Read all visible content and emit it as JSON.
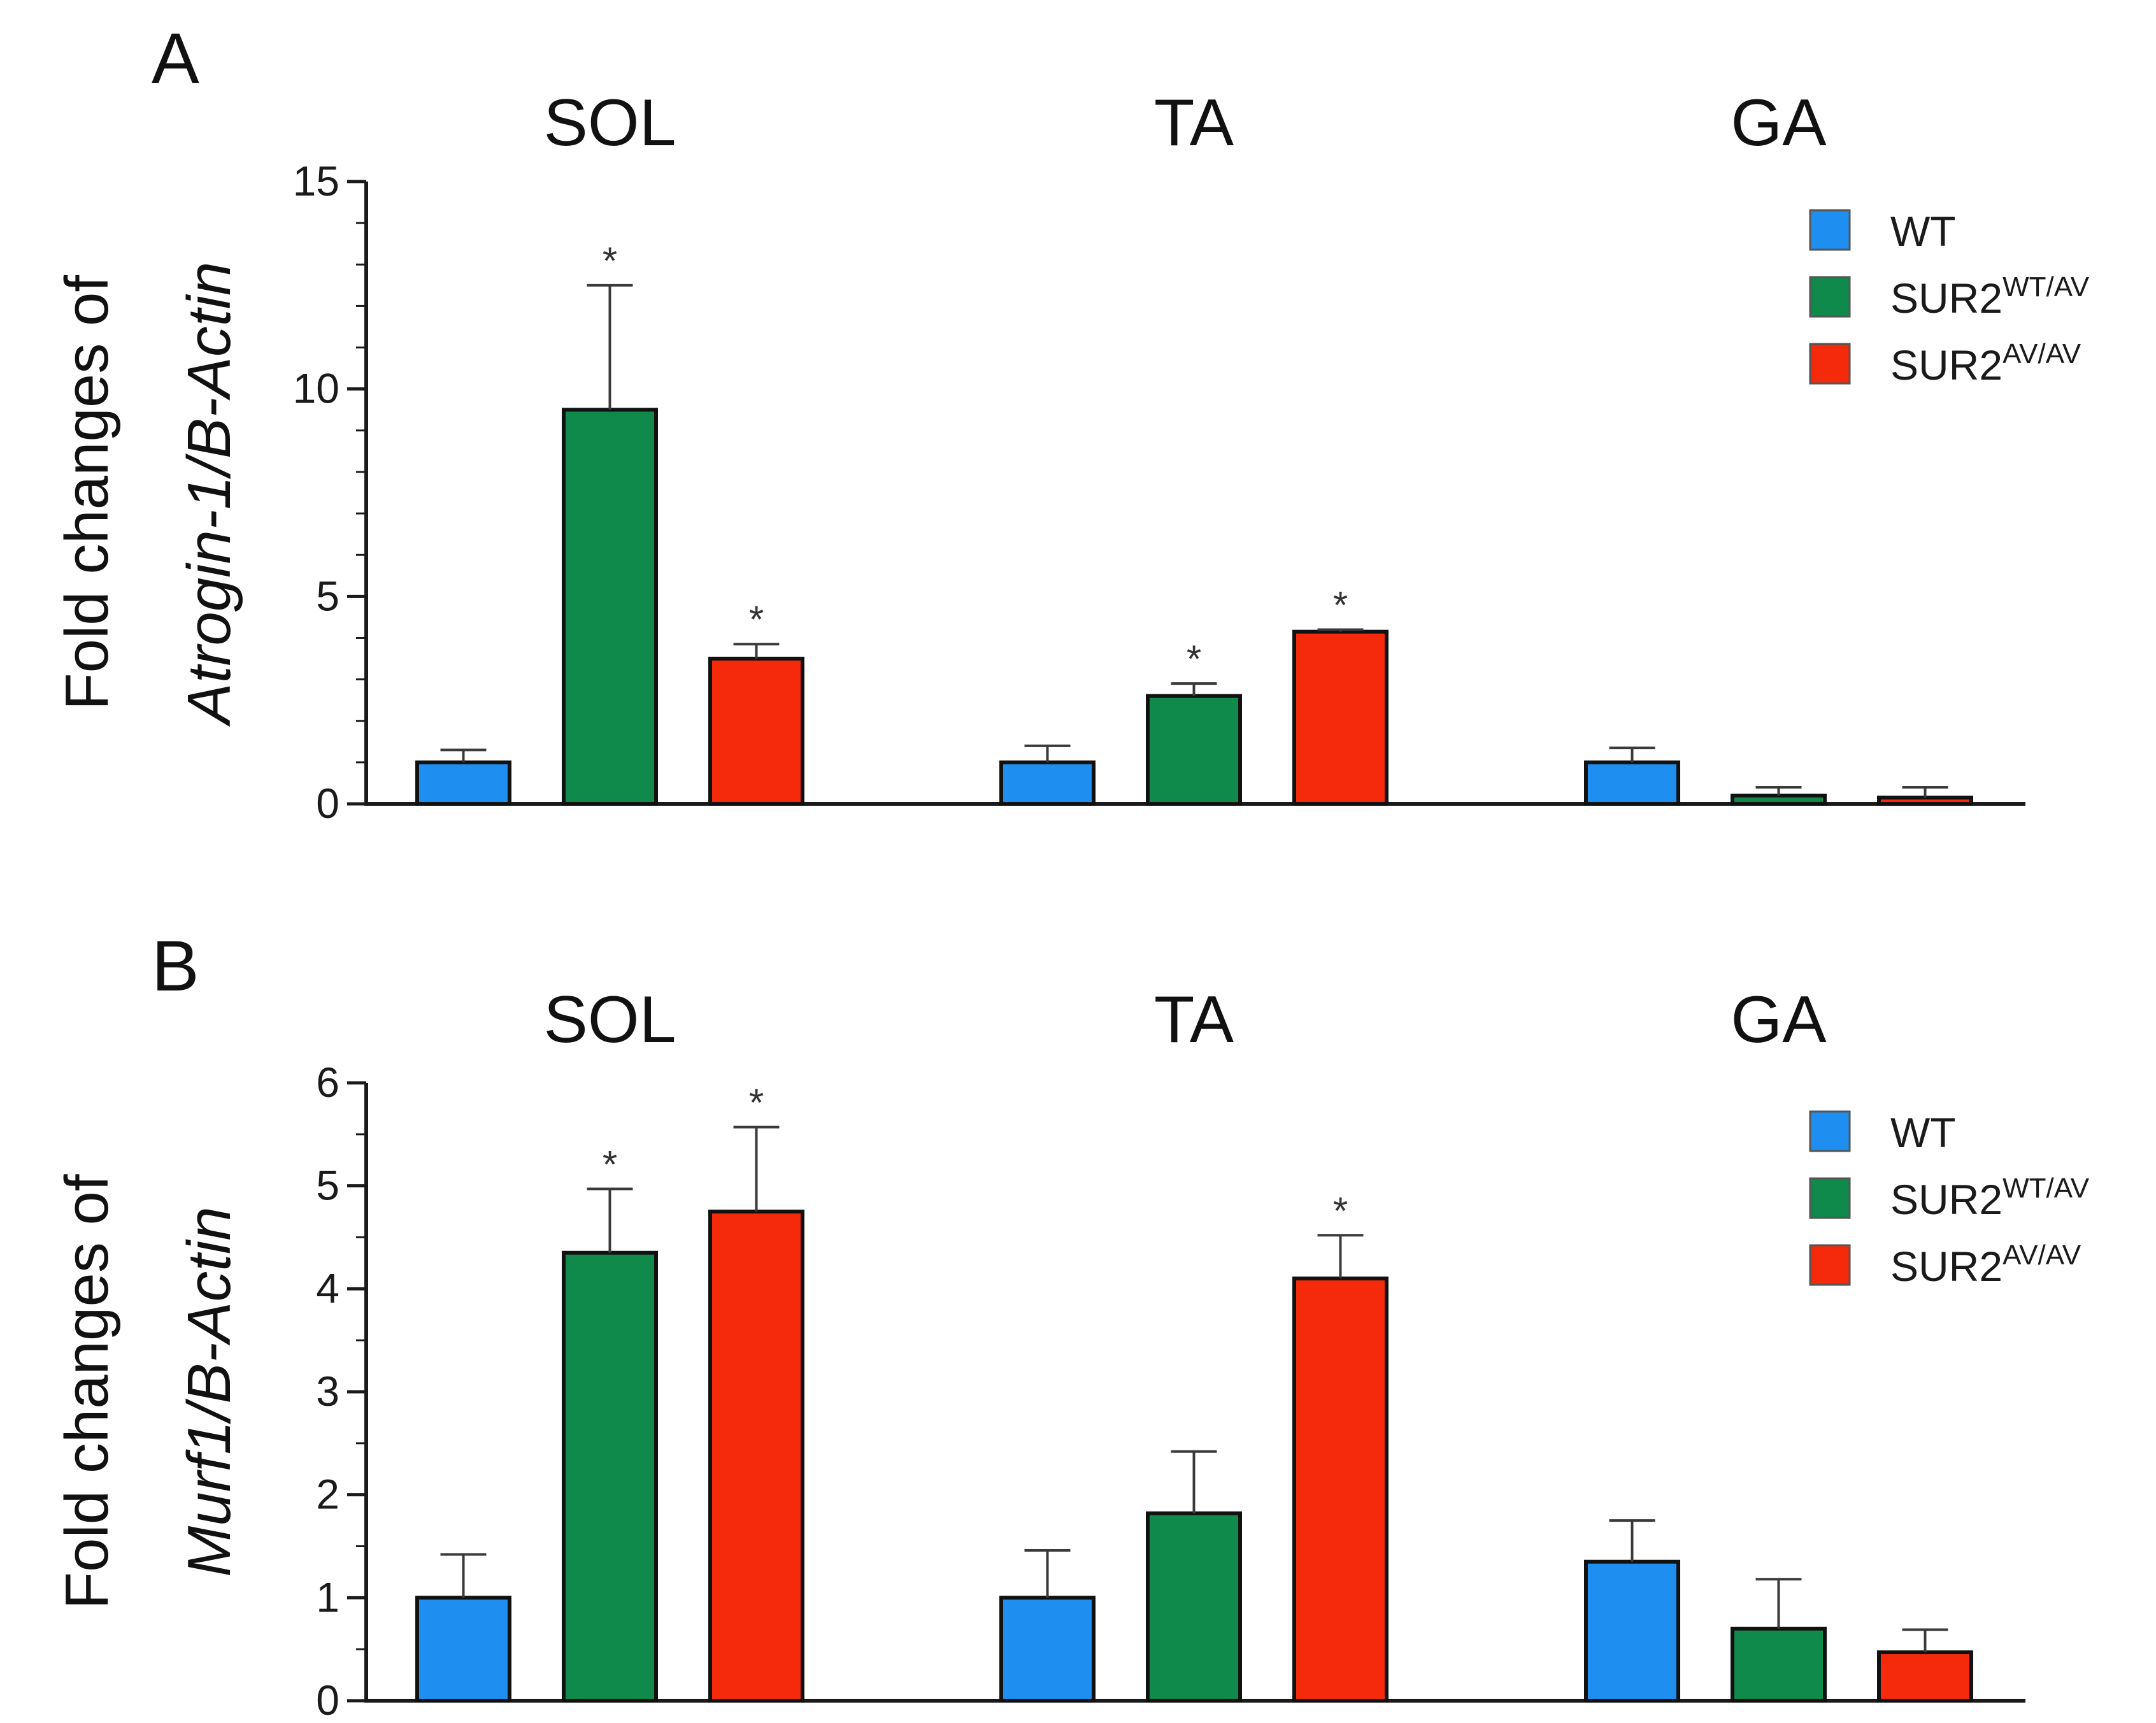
{
  "chart_data": [
    {
      "type": "bar",
      "panel": "A",
      "categories": [
        "SOL",
        "TA",
        "GA"
      ],
      "series": [
        {
          "name": "WT",
          "values": [
            1.0,
            1.0,
            1.0
          ],
          "errors": [
            0.3,
            0.4,
            0.35
          ],
          "sig": [
            false,
            false,
            false
          ]
        },
        {
          "name": "SUR2WT/AV",
          "values": [
            9.5,
            2.6,
            0.2
          ],
          "errors": [
            3.0,
            0.3,
            0.2
          ],
          "sig": [
            true,
            true,
            false
          ]
        },
        {
          "name": "SUR2AV/AV",
          "values": [
            3.5,
            4.15,
            0.15
          ],
          "errors": [
            0.35,
            0.05,
            0.25
          ],
          "sig": [
            true,
            true,
            false
          ]
        }
      ],
      "ylabel_prefix": "Fold changes of",
      "ylabel_gene": "Atrogin-1/B-Actin",
      "ylim": [
        0,
        15
      ],
      "yticks": [
        0,
        5,
        10,
        15
      ]
    },
    {
      "type": "bar",
      "panel": "B",
      "categories": [
        "SOL",
        "TA",
        "GA"
      ],
      "series": [
        {
          "name": "WT",
          "values": [
            1.0,
            1.0,
            1.35
          ],
          "errors": [
            0.42,
            0.46,
            0.4
          ],
          "sig": [
            false,
            false,
            false
          ]
        },
        {
          "name": "SUR2WT/AV",
          "values": [
            4.35,
            1.82,
            0.7
          ],
          "errors": [
            0.62,
            0.6,
            0.48
          ],
          "sig": [
            true,
            false,
            false
          ]
        },
        {
          "name": "SUR2AV/AV",
          "values": [
            4.75,
            4.1,
            0.47
          ],
          "errors": [
            0.82,
            0.42,
            0.22
          ],
          "sig": [
            true,
            true,
            false
          ]
        }
      ],
      "ylabel_prefix": "Fold changes of",
      "ylabel_gene": "Murf1/B-Actin",
      "ylim": [
        0,
        6
      ],
      "yticks": [
        0,
        1,
        2,
        3,
        4,
        5,
        6
      ]
    }
  ],
  "legend": [
    {
      "base": "WT",
      "sup": ""
    },
    {
      "base": "SUR2",
      "sup": "WT/AV"
    },
    {
      "base": "SUR2",
      "sup": "AV/AV"
    }
  ],
  "significance_marker": "*",
  "colors": {
    "WT": "#1e8ef0",
    "SUR2WT/AV": "#0f8a4a",
    "SUR2AV/AV": "#f52a0a"
  }
}
